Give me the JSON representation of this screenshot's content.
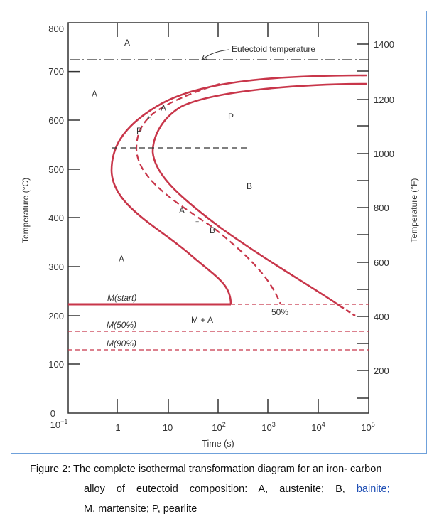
{
  "diagram": {
    "y_axis_left": {
      "label": "Temperature (°C)",
      "ticks": [
        "800",
        "700",
        "600",
        "500",
        "400",
        "300",
        "200",
        "100",
        "0"
      ]
    },
    "y_axis_right": {
      "label": "Temperature (°F)",
      "ticks": [
        "1400",
        "1200",
        "1000",
        "800",
        "600",
        "400",
        "200"
      ]
    },
    "x_axis": {
      "label": "Time (s)",
      "ticks": [
        "10",
        "−1",
        "1",
        "10",
        "10",
        "2",
        "10",
        "3",
        "10",
        "4",
        "10",
        "5"
      ]
    },
    "eutectoid_label": "Eutectoid temperature",
    "regions": {
      "a_top": "A",
      "a_left": "A",
      "a_mid": "A",
      "p_mid": "P",
      "p_label": "P",
      "a_label": "A",
      "plus1": "+",
      "a_lower": "A",
      "plus2": "+",
      "b_lower": "B",
      "b_main": "B",
      "m_plus_a": "M + A",
      "fifty": "50%"
    },
    "m_start": "M(start)",
    "m_50": "M(50%)",
    "m_90": "M(90%)",
    "colors": {
      "curve": "#c8364a",
      "axis": "#333333",
      "frame": "#6fa1db"
    }
  },
  "caption": {
    "line1": "Figure 2: The complete isothermal transformation diagram for an iron- carbon",
    "line2a": "alloy of eutectoid composition: A, austenite; B,",
    "line2b": "bainite;",
    "line3": "M, martensite;   P, pearlite"
  }
}
